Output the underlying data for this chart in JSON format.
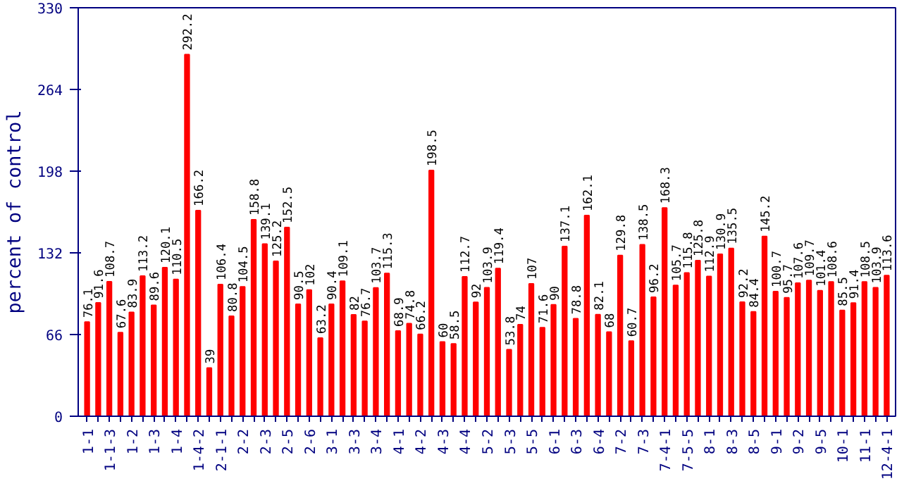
{
  "chart_data": {
    "type": "bar",
    "ylabel": "percent of control",
    "categories": [
      "1-1",
      null,
      "1-1-3",
      null,
      "1-2",
      null,
      "1-3",
      null,
      "1-4",
      null,
      "1-4-2",
      null,
      "2-1-1",
      null,
      "2-2",
      null,
      "2-3",
      null,
      "2-5",
      null,
      "2-6",
      null,
      "3-1",
      null,
      "3-3",
      null,
      "3-4",
      null,
      "4-1",
      null,
      "4-2",
      null,
      "4-3",
      null,
      "4-4",
      null,
      "5-2",
      null,
      "5-3",
      null,
      "5-5",
      null,
      "6-1",
      null,
      "6-3",
      null,
      "6-4",
      null,
      "7-2",
      null,
      "7-3",
      null,
      "7-4-1",
      null,
      "7-5-5",
      null,
      "8-1",
      null,
      "8-3",
      null,
      "8-5",
      null,
      "9-1",
      null,
      "9-2",
      null,
      "9-5",
      null,
      "10-1",
      null,
      "11-1",
      null,
      "12-4-1"
    ],
    "values": [
      76.1,
      91.6,
      108.7,
      67.6,
      83.9,
      113.2,
      89.6,
      120.1,
      110.5,
      292.2,
      166.2,
      39,
      106.4,
      80.8,
      104.5,
      158.8,
      139.1,
      125.2,
      152.5,
      90.5,
      102,
      63.2,
      90.4,
      109.1,
      82,
      76.7,
      103.7,
      115.3,
      68.9,
      74.8,
      66.2,
      198.5,
      60,
      58.5,
      112.7,
      92,
      103.9,
      119.4,
      53.8,
      74,
      107,
      71.6,
      90,
      137.1,
      78.8,
      162.1,
      82.1,
      68,
      129.8,
      60.7,
      138.5,
      96.2,
      168.3,
      105.7,
      115.8,
      125.8,
      112.9,
      130.9,
      135.5,
      92.2,
      84.4,
      145.2,
      100.7,
      95.7,
      107.6,
      109.7,
      101.4,
      108.6,
      85.5,
      91.4,
      108.5,
      103.9,
      113.6
    ],
    "color": "#ff0000",
    "data_labels": true,
    "ylim": [
      0,
      330
    ],
    "yticks": [
      0,
      66,
      132,
      198,
      264,
      330
    ],
    "grid": false
  }
}
